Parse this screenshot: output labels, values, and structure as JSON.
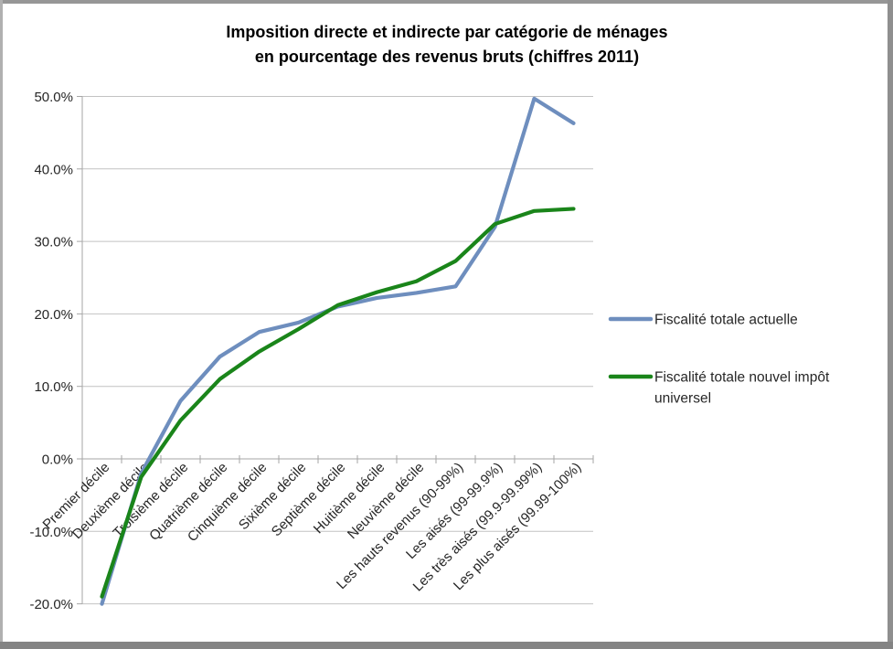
{
  "title": {
    "line1": "Imposition directe et indirecte par catégorie de ménages",
    "line2": "en pourcentage des revenus bruts (chiffres 2011)"
  },
  "chart_data": {
    "type": "line",
    "title": "Imposition directe et indirecte par catégorie de ménages en pourcentage des revenus bruts (chiffres 2011)",
    "categories": [
      "Premier décile",
      "Deuxième décile",
      "Troisième décile",
      "Quatrième décile",
      "Cinquième décile",
      "Sixième décile",
      "Septième décile",
      "Huitième décile",
      "Neuvième décile",
      "Les hauts revenus (90-99%)",
      "Les aisés (99-99.9%)",
      "Les très aisés (99.9-99.99%)",
      "Les plus aisés (99.99-100%)"
    ],
    "series": [
      {
        "name": "Fiscalité totale actuelle",
        "color": "#6e8ebe",
        "values": [
          -20.0,
          -2.0,
          8.0,
          14.1,
          17.5,
          18.8,
          21.0,
          22.2,
          22.9,
          23.8,
          32.0,
          49.7,
          46.3
        ]
      },
      {
        "name": "Fiscalité totale nouvel impôt universel",
        "color": "#1a851a",
        "values": [
          -19.0,
          -2.5,
          5.3,
          11.0,
          14.8,
          17.9,
          21.2,
          23.0,
          24.5,
          27.3,
          32.4,
          34.2,
          34.5
        ]
      }
    ],
    "ylim": [
      -20,
      50
    ],
    "ytick_step": 10,
    "ytick_labels": [
      "50.0%",
      "40.0%",
      "30.0%",
      "20.0%",
      "10.0%",
      "0.0%",
      "-10.0%",
      "-20.0%"
    ],
    "xlabel": "",
    "ylabel": "",
    "grid": true,
    "legend_position": "right"
  },
  "legend": {
    "items": [
      {
        "lines": [
          "Fiscalité totale actuelle"
        ],
        "series": "Fiscalité totale actuelle"
      },
      {
        "lines": [
          "Fiscalité totale nouvel impôt",
          "universel"
        ],
        "series": "Fiscalité totale nouvel impôt universel"
      }
    ]
  },
  "colors": {
    "series_blue": "#6e8ebe",
    "series_green": "#1a851a",
    "gridline": "#c2c2c2",
    "axis": "#a6a6a6",
    "tick_text": "#262626",
    "title_text": "#1c1c1c",
    "border_top": "#969696",
    "border_left": "#b0b0b0",
    "border_right": "#8f8f8f",
    "border_bottom": "#848484",
    "background": "#ffffff"
  }
}
